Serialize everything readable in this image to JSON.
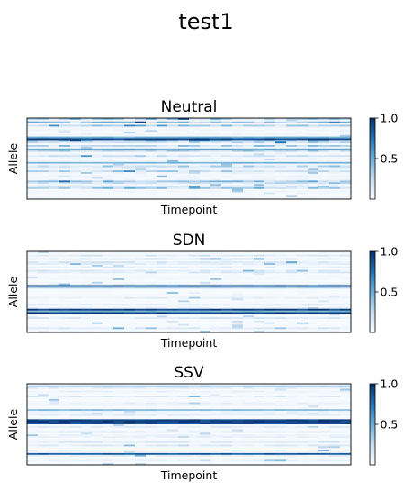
{
  "figure": {
    "title": "test1"
  },
  "chart_data": [
    {
      "type": "heatmap",
      "title": "Neutral",
      "xlabel": "Timepoint",
      "ylabel": "Allele",
      "colormap": "Blues",
      "colorbar": {
        "ticks": [
          "1.0",
          "0.5"
        ],
        "range": [
          0,
          1
        ]
      },
      "rows": 48,
      "cols": 30,
      "seed": 7,
      "base_level": 0.12,
      "strong_rows": [
        {
          "row": 12,
          "value": 1.0
        },
        {
          "row": 11,
          "value": 0.55
        },
        {
          "row": 18,
          "value": 0.55
        },
        {
          "row": 26,
          "value": 0.5
        }
      ]
    },
    {
      "type": "heatmap",
      "title": "SDN",
      "xlabel": "Timepoint",
      "ylabel": "Allele",
      "colormap": "Blues",
      "colorbar": {
        "ticks": [
          "1.0",
          "0.5"
        ],
        "range": [
          0,
          1
        ]
      },
      "rows": 48,
      "cols": 30,
      "seed": 19,
      "base_level": 0.05,
      "strong_rows": [
        {
          "row": 20,
          "value": 1.0
        },
        {
          "row": 34,
          "value": 1.0
        },
        {
          "row": 36,
          "value": 1.0
        },
        {
          "row": 35,
          "value": 0.5
        },
        {
          "row": 21,
          "value": 0.35
        }
      ]
    },
    {
      "type": "heatmap",
      "title": "SSV",
      "xlabel": "Timepoint",
      "ylabel": "Allele",
      "colormap": "Blues",
      "colorbar": {
        "ticks": [
          "1.0",
          "0.5"
        ],
        "range": [
          0,
          1
        ]
      },
      "rows": 48,
      "cols": 30,
      "seed": 31,
      "base_level": 0.04,
      "strong_rows": [
        {
          "row": 21,
          "value": 1.0
        },
        {
          "row": 22,
          "value": 1.0
        },
        {
          "row": 23,
          "value": 0.95
        },
        {
          "row": 41,
          "value": 0.9
        },
        {
          "row": 15,
          "value": 0.45
        },
        {
          "row": 1,
          "value": 0.35
        }
      ]
    }
  ]
}
